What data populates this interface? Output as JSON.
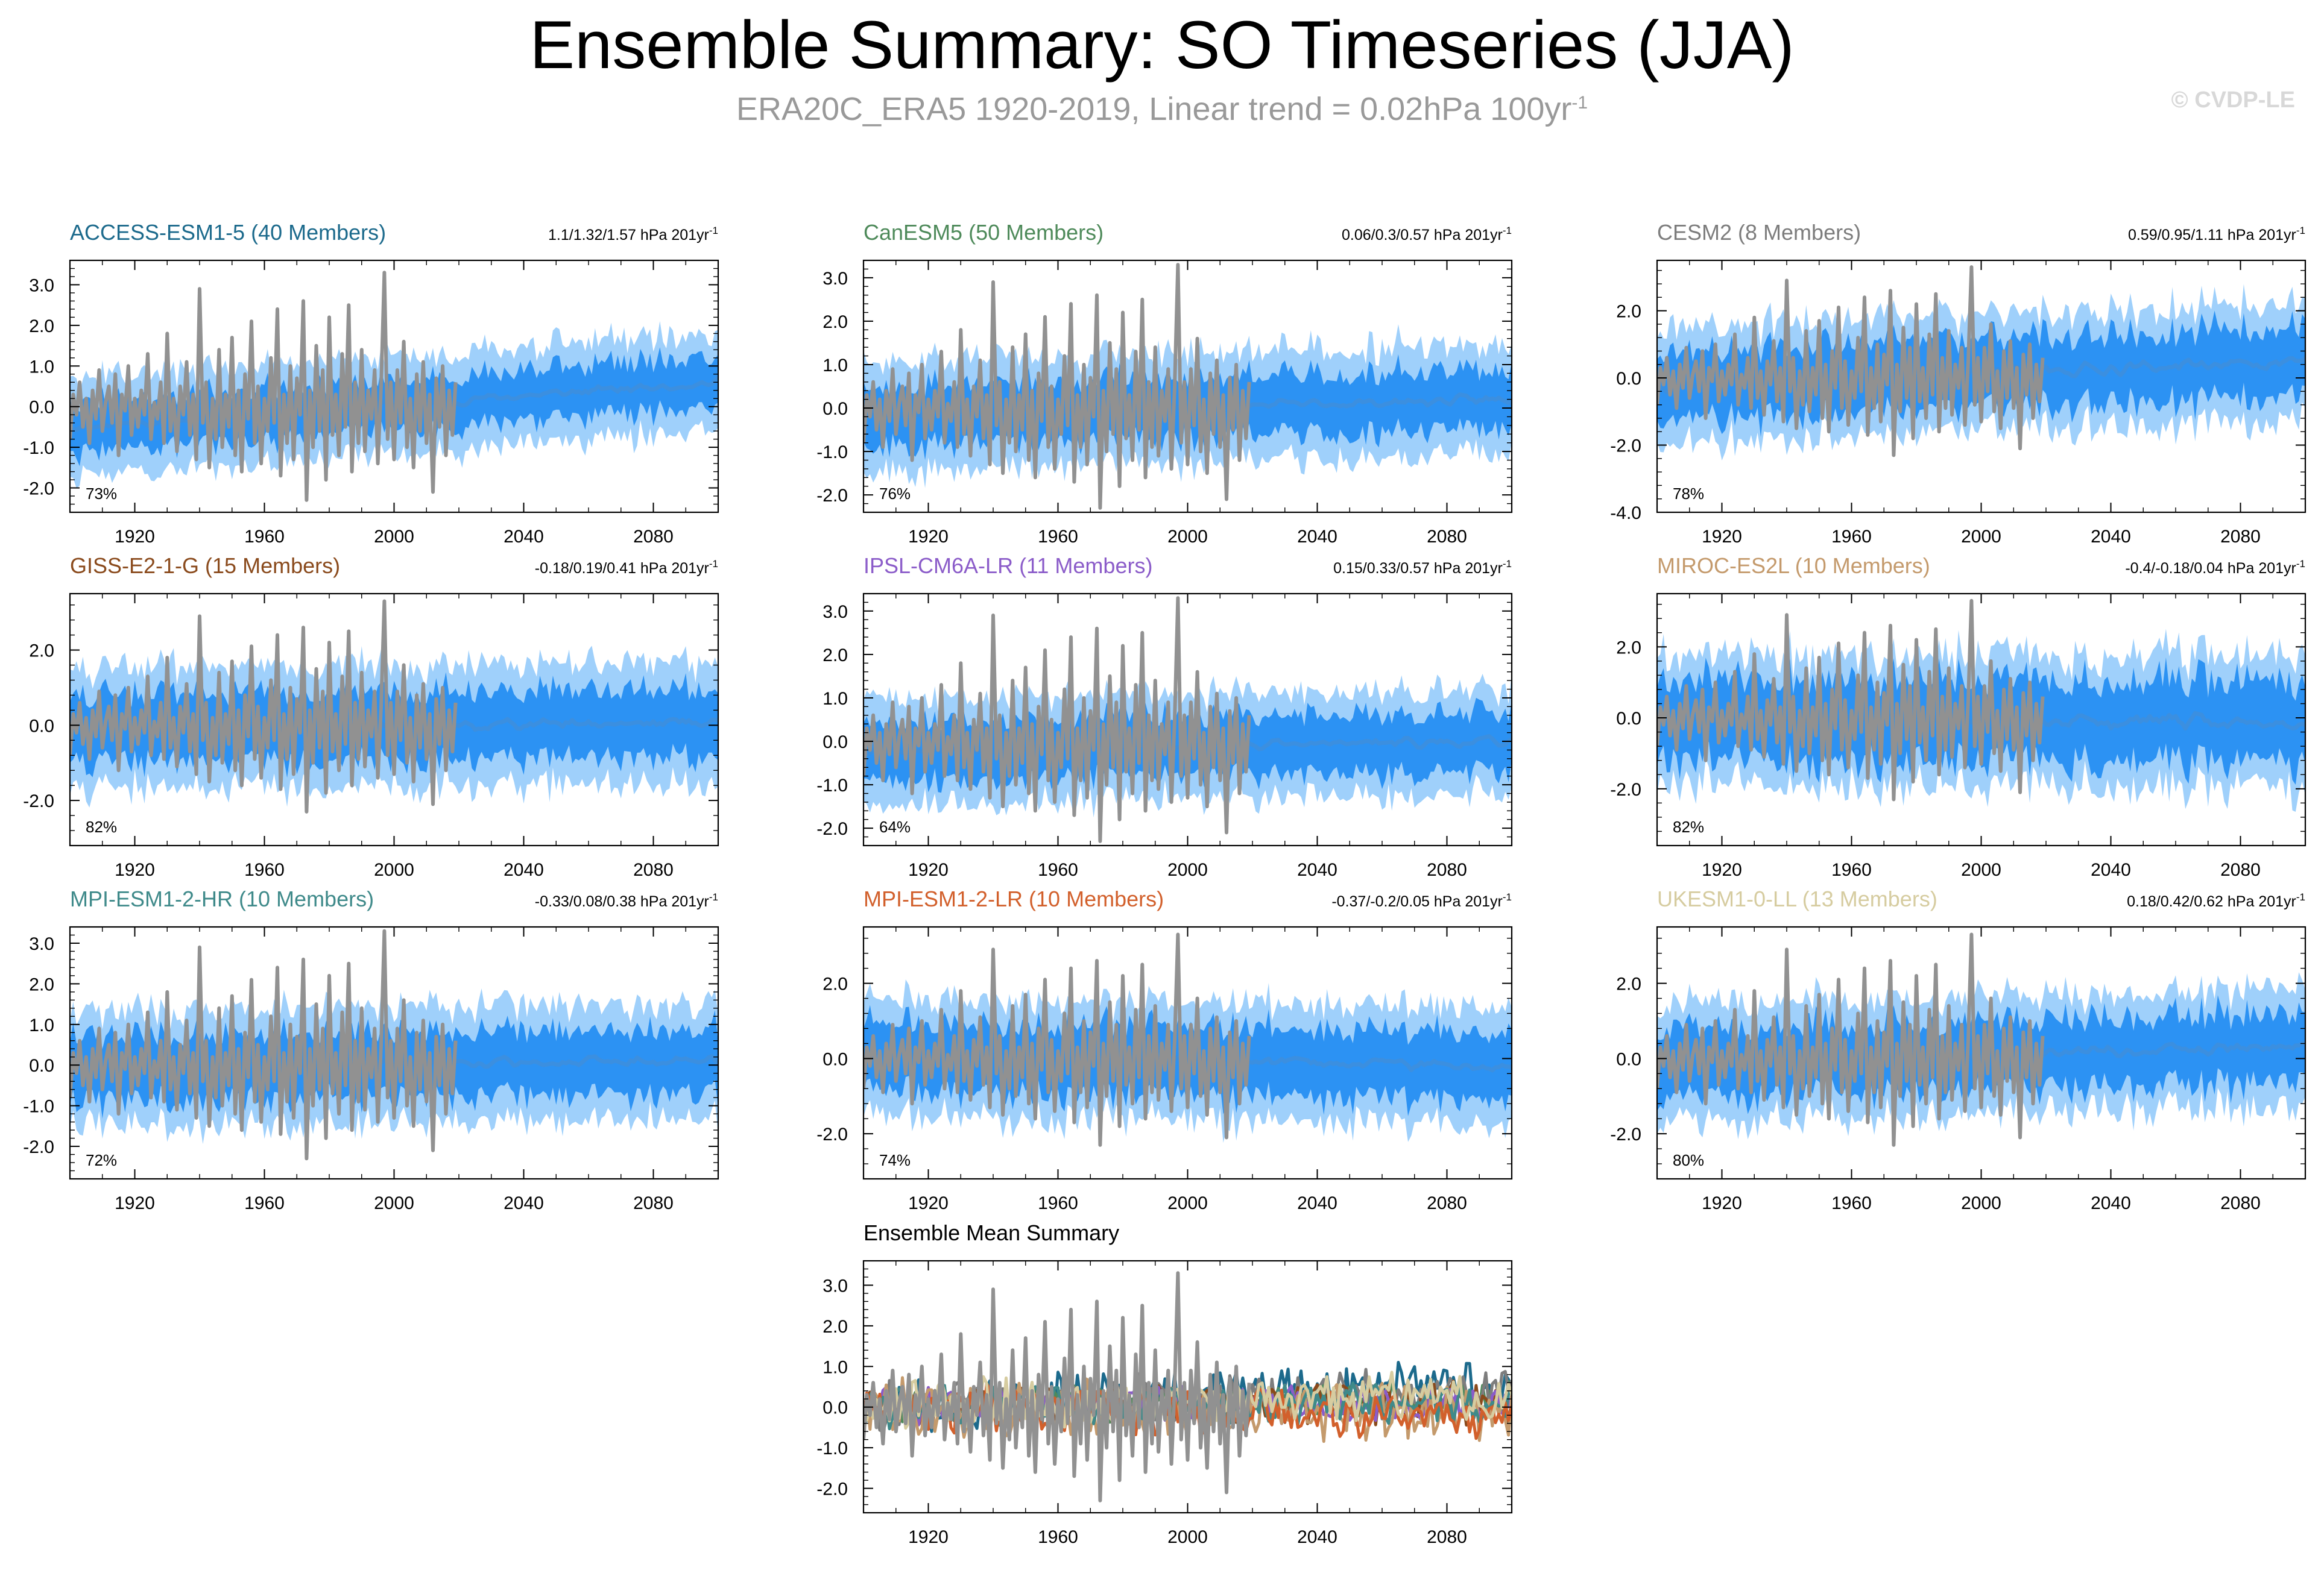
{
  "page": {
    "title": "Ensemble Summary: SO Timeseries (JJA)",
    "subtitle_main": "ERA20C_ERA5 1920-2019, Linear trend = 0.02hPa 100yr",
    "subtitle_sup": "-1",
    "copyright": "© CVDP-LE"
  },
  "colors": {
    "band_outer": "#9fd0fb",
    "band_inner": "#2c92f3",
    "ens_mean": "#3b8fe0",
    "observation": "#919191"
  },
  "chart_data": [
    {
      "id": "access",
      "type": "line",
      "title": "ACCESS-ESM1-5 (40 Members)",
      "title_color": "#1c6a8c",
      "stats": "1.1/1.32/1.57 hPa 201yr",
      "stats_sup": "-1",
      "pct_label": "73%",
      "xlim": [
        1900,
        2100
      ],
      "ylim": [
        -2.6,
        3.6
      ],
      "yticks": [
        -2,
        -1,
        0,
        1,
        2,
        3
      ],
      "ytick_labels": [
        "-2.0",
        "-1.0",
        "0.0",
        "1.0",
        "2.0",
        "3.0"
      ],
      "xticks": [
        1920,
        1960,
        2000,
        2040,
        2080
      ],
      "xtick_labels": [
        "1920",
        "1960",
        "2000",
        "2040",
        "2080"
      ],
      "mean_start": -0.5,
      "mean_end": 0.6,
      "inner_spread": 0.55,
      "outer_spread": 1.05,
      "noise": 0.3,
      "seed": 11
    },
    {
      "id": "canesm",
      "type": "line",
      "title": "CanESM5 (50 Members)",
      "title_color": "#4e8a5a",
      "stats": "0.06/0.3/0.57 hPa 201yr",
      "stats_sup": "-1",
      "pct_label": "76%",
      "xlim": [
        1900,
        2100
      ],
      "ylim": [
        -2.4,
        3.4
      ],
      "yticks": [
        -2,
        -1,
        0,
        1,
        2,
        3
      ],
      "ytick_labels": [
        "-2.0",
        "-1.0",
        "0.0",
        "1.0",
        "2.0",
        "3.0"
      ],
      "xticks": [
        1920,
        1960,
        2000,
        2040,
        2080
      ],
      "xtick_labels": [
        "1920",
        "1960",
        "2000",
        "2040",
        "2080"
      ],
      "mean_start": -0.15,
      "mean_end": 0.2,
      "inner_spread": 0.6,
      "outer_spread": 1.1,
      "noise": 0.3,
      "seed": 23
    },
    {
      "id": "cesm2",
      "type": "line",
      "title": "CESM2 (8 Members)",
      "title_color": "#7d7d7d",
      "stats": "0.59/0.95/1.11 hPa 201yr",
      "stats_sup": "-1",
      "pct_label": "78%",
      "xlim": [
        1900,
        2100
      ],
      "ylim": [
        -4.0,
        3.5
      ],
      "yticks": [
        -4,
        -2,
        0,
        2
      ],
      "ytick_labels": [
        "-4.0",
        "-2.0",
        "0.0",
        "2.0"
      ],
      "xticks": [
        1920,
        1960,
        2000,
        2040,
        2080
      ],
      "xtick_labels": [
        "1920",
        "1960",
        "2000",
        "2040",
        "2080"
      ],
      "mean_start": -0.2,
      "mean_end": 0.5,
      "inner_spread": 0.9,
      "outer_spread": 1.5,
      "noise": 0.55,
      "seed": 37
    },
    {
      "id": "giss",
      "type": "line",
      "title": "GISS-E2-1-G (15 Members)",
      "title_color": "#8a4a1c",
      "stats": "-0.18/0.19/0.41 hPa 201yr",
      "stats_sup": "-1",
      "pct_label": "82%",
      "xlim": [
        1900,
        2100
      ],
      "ylim": [
        -3.2,
        3.5
      ],
      "yticks": [
        -2,
        0,
        2
      ],
      "ytick_labels": [
        "-2.0",
        "0.0",
        "2.0"
      ],
      "xticks": [
        1920,
        1960,
        2000,
        2040,
        2080
      ],
      "xtick_labels": [
        "1920",
        "1960",
        "2000",
        "2040",
        "2080"
      ],
      "mean_start": -0.1,
      "mean_end": 0.1,
      "inner_spread": 0.8,
      "outer_spread": 1.4,
      "noise": 0.4,
      "seed": 41
    },
    {
      "id": "ipsl",
      "type": "line",
      "title": "IPSL-CM6A-LR (11 Members)",
      "title_color": "#8b5cc9",
      "stats": "0.15/0.33/0.57 hPa 201yr",
      "stats_sup": "-1",
      "pct_label": "64%",
      "xlim": [
        1900,
        2100
      ],
      "ylim": [
        -2.4,
        3.4
      ],
      "yticks": [
        -2,
        -1,
        0,
        1,
        2,
        3
      ],
      "ytick_labels": [
        "-2.0",
        "-1.0",
        "0.0",
        "1.0",
        "2.0",
        "3.0"
      ],
      "xticks": [
        1920,
        1960,
        2000,
        2040,
        2080
      ],
      "xtick_labels": [
        "1920",
        "1960",
        "2000",
        "2040",
        "2080"
      ],
      "mean_start": -0.2,
      "mean_end": 0.0,
      "inner_spread": 0.6,
      "outer_spread": 1.05,
      "noise": 0.3,
      "seed": 53
    },
    {
      "id": "miroc",
      "type": "line",
      "title": "MIROC-ES2L (10 Members)",
      "title_color": "#c49a6c",
      "stats": "-0.4/-0.18/0.04 hPa 201yr",
      "stats_sup": "-1",
      "pct_label": "82%",
      "xlim": [
        1900,
        2100
      ],
      "ylim": [
        -3.6,
        3.5
      ],
      "yticks": [
        -2,
        0,
        2
      ],
      "ytick_labels": [
        "-2.0",
        "0.0",
        "2.0"
      ],
      "xticks": [
        1920,
        1960,
        2000,
        2040,
        2080
      ],
      "xtick_labels": [
        "1920",
        "1960",
        "2000",
        "2040",
        "2080"
      ],
      "mean_start": 0.05,
      "mean_end": -0.15,
      "inner_spread": 1.0,
      "outer_spread": 1.6,
      "noise": 0.55,
      "seed": 67
    },
    {
      "id": "mpihr",
      "type": "line",
      "title": "MPI-ESM1-2-HR (10 Members)",
      "title_color": "#3f8a8a",
      "stats": "-0.33/0.08/0.38 hPa 201yr",
      "stats_sup": "-1",
      "pct_label": "72%",
      "xlim": [
        1900,
        2100
      ],
      "ylim": [
        -2.8,
        3.4
      ],
      "yticks": [
        -2,
        -1,
        0,
        1,
        2,
        3
      ],
      "ytick_labels": [
        "-2.0",
        "-1.0",
        "0.0",
        "1.0",
        "2.0",
        "3.0"
      ],
      "xticks": [
        1920,
        1960,
        2000,
        2040,
        2080
      ],
      "xtick_labels": [
        "1920",
        "1960",
        "2000",
        "2040",
        "2080"
      ],
      "mean_start": -0.05,
      "mean_end": 0.1,
      "inner_spread": 0.7,
      "outer_spread": 1.25,
      "noise": 0.35,
      "seed": 71
    },
    {
      "id": "mpilr",
      "type": "line",
      "title": "MPI-ESM1-2-LR (10 Members)",
      "title_color": "#d2602c",
      "stats": "-0.37/-0.2/0.05 hPa 201yr",
      "stats_sup": "-1",
      "pct_label": "74%",
      "xlim": [
        1900,
        2100
      ],
      "ylim": [
        -3.2,
        3.5
      ],
      "yticks": [
        -2,
        0,
        2
      ],
      "ytick_labels": [
        "-2.0",
        "0.0",
        "2.0"
      ],
      "xticks": [
        1920,
        1960,
        2000,
        2040,
        2080
      ],
      "xtick_labels": [
        "1920",
        "1960",
        "2000",
        "2040",
        "2080"
      ],
      "mean_start": 0.1,
      "mean_end": -0.2,
      "inner_spread": 0.8,
      "outer_spread": 1.35,
      "noise": 0.4,
      "seed": 83
    },
    {
      "id": "ukesm",
      "type": "line",
      "title": "UKESM1-0-LL (13 Members)",
      "title_color": "#d6cca0",
      "stats": "0.18/0.42/0.62 hPa 201yr",
      "stats_sup": "-1",
      "pct_label": "80%",
      "xlim": [
        1900,
        2100
      ],
      "ylim": [
        -3.2,
        3.5
      ],
      "yticks": [
        -2,
        0,
        2
      ],
      "ytick_labels": [
        "-2.0",
        "0.0",
        "2.0"
      ],
      "xticks": [
        1920,
        1960,
        2000,
        2040,
        2080
      ],
      "xtick_labels": [
        "1920",
        "1960",
        "2000",
        "2040",
        "2080"
      ],
      "mean_start": -0.1,
      "mean_end": 0.3,
      "inner_spread": 0.8,
      "outer_spread": 1.35,
      "noise": 0.4,
      "seed": 97
    },
    {
      "id": "ensmean",
      "type": "line",
      "title": "Ensemble Mean Summary",
      "title_color": "#000000",
      "stats": "",
      "stats_sup": "",
      "pct_label": "",
      "xlim": [
        1900,
        2100
      ],
      "ylim": [
        -2.6,
        3.6
      ],
      "yticks": [
        -2,
        -1,
        0,
        1,
        2,
        3
      ],
      "ytick_labels": [
        "-2.0",
        "-1.0",
        "0.0",
        "1.0",
        "2.0",
        "3.0"
      ],
      "xticks": [
        1920,
        1960,
        2000,
        2040,
        2080
      ],
      "xtick_labels": [
        "1920",
        "1960",
        "2000",
        "2040",
        "2080"
      ],
      "series": [
        {
          "name": "ACCESS-ESM1-5",
          "color": "#1c6a8c",
          "amp": 0.5,
          "trend": 0.6,
          "seed": 111
        },
        {
          "name": "CanESM5",
          "color": "#4e8a5a",
          "amp": 0.35,
          "trend": 0.2,
          "seed": 112
        },
        {
          "name": "CESM2",
          "color": "#7d7d7d",
          "amp": 0.5,
          "trend": 0.4,
          "seed": 113
        },
        {
          "name": "GISS-E2-1-G",
          "color": "#8a4a1c",
          "amp": 0.4,
          "trend": 0.1,
          "seed": 114
        },
        {
          "name": "IPSL-CM6A-LR",
          "color": "#8b5cc9",
          "amp": 0.35,
          "trend": 0.1,
          "seed": 115
        },
        {
          "name": "MIROC-ES2L",
          "color": "#c49a6c",
          "amp": 0.6,
          "trend": -0.15,
          "seed": 116
        },
        {
          "name": "MPI-ESM1-2-HR",
          "color": "#3f8a8a",
          "amp": 0.4,
          "trend": 0.1,
          "seed": 117
        },
        {
          "name": "MPI-ESM1-2-LR",
          "color": "#d2602c",
          "amp": 0.45,
          "trend": -0.2,
          "seed": 118
        },
        {
          "name": "UKESM1-0-LL",
          "color": "#d6cca0",
          "amp": 0.5,
          "trend": 0.3,
          "seed": 119
        }
      ]
    }
  ],
  "observation": {
    "name": "ERA20C_ERA5",
    "start_year": 1900,
    "end_year": 2019,
    "values": [
      -0.8,
      0.3,
      -0.2,
      0.6,
      -0.5,
      0.2,
      -0.9,
      0.4,
      -0.3,
      0.9,
      -0.6,
      0.1,
      0.5,
      -0.4,
      0.8,
      -1.2,
      0.3,
      -0.1,
      1.0,
      -0.7,
      0.2,
      -0.5,
      0.4,
      -0.2,
      1.3,
      -0.8,
      0.1,
      -0.3,
      0.6,
      -0.9,
      1.8,
      -0.6,
      0.2,
      -1.1,
      0.5,
      -0.2,
      1.1,
      -0.7,
      0.3,
      -1.3,
      2.9,
      -0.4,
      0.6,
      -1.5,
      0.2,
      -0.8,
      1.4,
      -1.0,
      0.3,
      -0.5,
      1.7,
      -1.2,
      0.4,
      -1.6,
      0.8,
      -0.3,
      2.1,
      -0.9,
      0.5,
      -1.4,
      0.2,
      -0.6,
      1.2,
      -0.4,
      2.4,
      -1.7,
      0.3,
      -0.9,
      1.0,
      -1.3,
      0.7,
      -0.2,
      2.6,
      -2.3,
      0.4,
      -1.0,
      1.5,
      -0.6,
      0.9,
      -1.8,
      2.2,
      -0.7,
      0.3,
      -1.2,
      1.3,
      -0.5,
      2.5,
      -1.6,
      0.6,
      -0.9,
      1.4,
      -1.1,
      0.4,
      -0.3,
      0.9,
      -1.4,
      0.5,
      3.3,
      -0.8,
      0.6,
      -1.3,
      0.9,
      -0.4,
      1.6,
      -1.0,
      0.2,
      -1.5,
      0.8,
      -0.6,
      1.1,
      -0.9,
      0.3,
      -2.1,
      0.7,
      -0.5,
      1.0,
      -1.2,
      0.4,
      -0.7,
      0.6
    ]
  }
}
